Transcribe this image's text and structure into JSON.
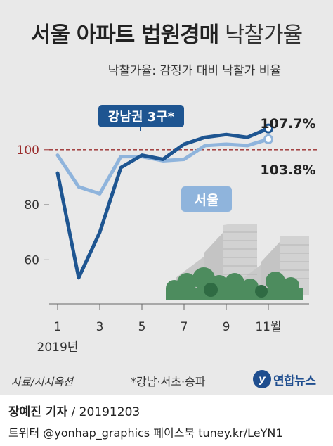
{
  "title_main": "서울 아파트 법원경매",
  "title_sub": "낙찰가율",
  "subtitle": "낙찰가율: 감정가 대비 낙찰가 비율",
  "source": "자료/지지옥션",
  "footnote": "*강남·서초·송파",
  "logo": {
    "mark": "y",
    "text": "연합뉴스"
  },
  "credit": {
    "author": "장예진 기자",
    "date": "20191203"
  },
  "social": {
    "twitter": "트위터 @yonhap_graphics",
    "facebook": "페이스북 tuney.kr/LeYN1"
  },
  "colors": {
    "gangnam": "#1e5591",
    "seoul": "#8fb4dc",
    "reference": "#9b2d2d",
    "panel": "#e9e9e9"
  },
  "chart_data": {
    "type": "line",
    "x": [
      1,
      2,
      3,
      4,
      5,
      6,
      7,
      8,
      9,
      10,
      11
    ],
    "x_ticks": [
      1,
      3,
      5,
      7,
      9,
      11
    ],
    "x_tick_labels": [
      "1",
      "3",
      "5",
      "7",
      "9",
      "11월"
    ],
    "x_year_label": "2019년",
    "y_ticks": [
      60,
      80,
      100
    ],
    "y_tick_labels": [
      "60",
      "80",
      "100"
    ],
    "ylim": [
      44,
      114
    ],
    "reference_line": 100,
    "grid": false,
    "series": [
      {
        "name": "강남권 3구*",
        "values": [
          91.5,
          53.5,
          70,
          93.5,
          98,
          96.5,
          102,
          104.5,
          105.5,
          104.5,
          107.7
        ],
        "end_label": "107.7%"
      },
      {
        "name": "서울",
        "values": [
          98,
          86.5,
          84,
          97.5,
          97.5,
          96,
          96.5,
          101.5,
          102,
          101.5,
          103.8
        ],
        "end_label": "103.8%"
      }
    ]
  }
}
